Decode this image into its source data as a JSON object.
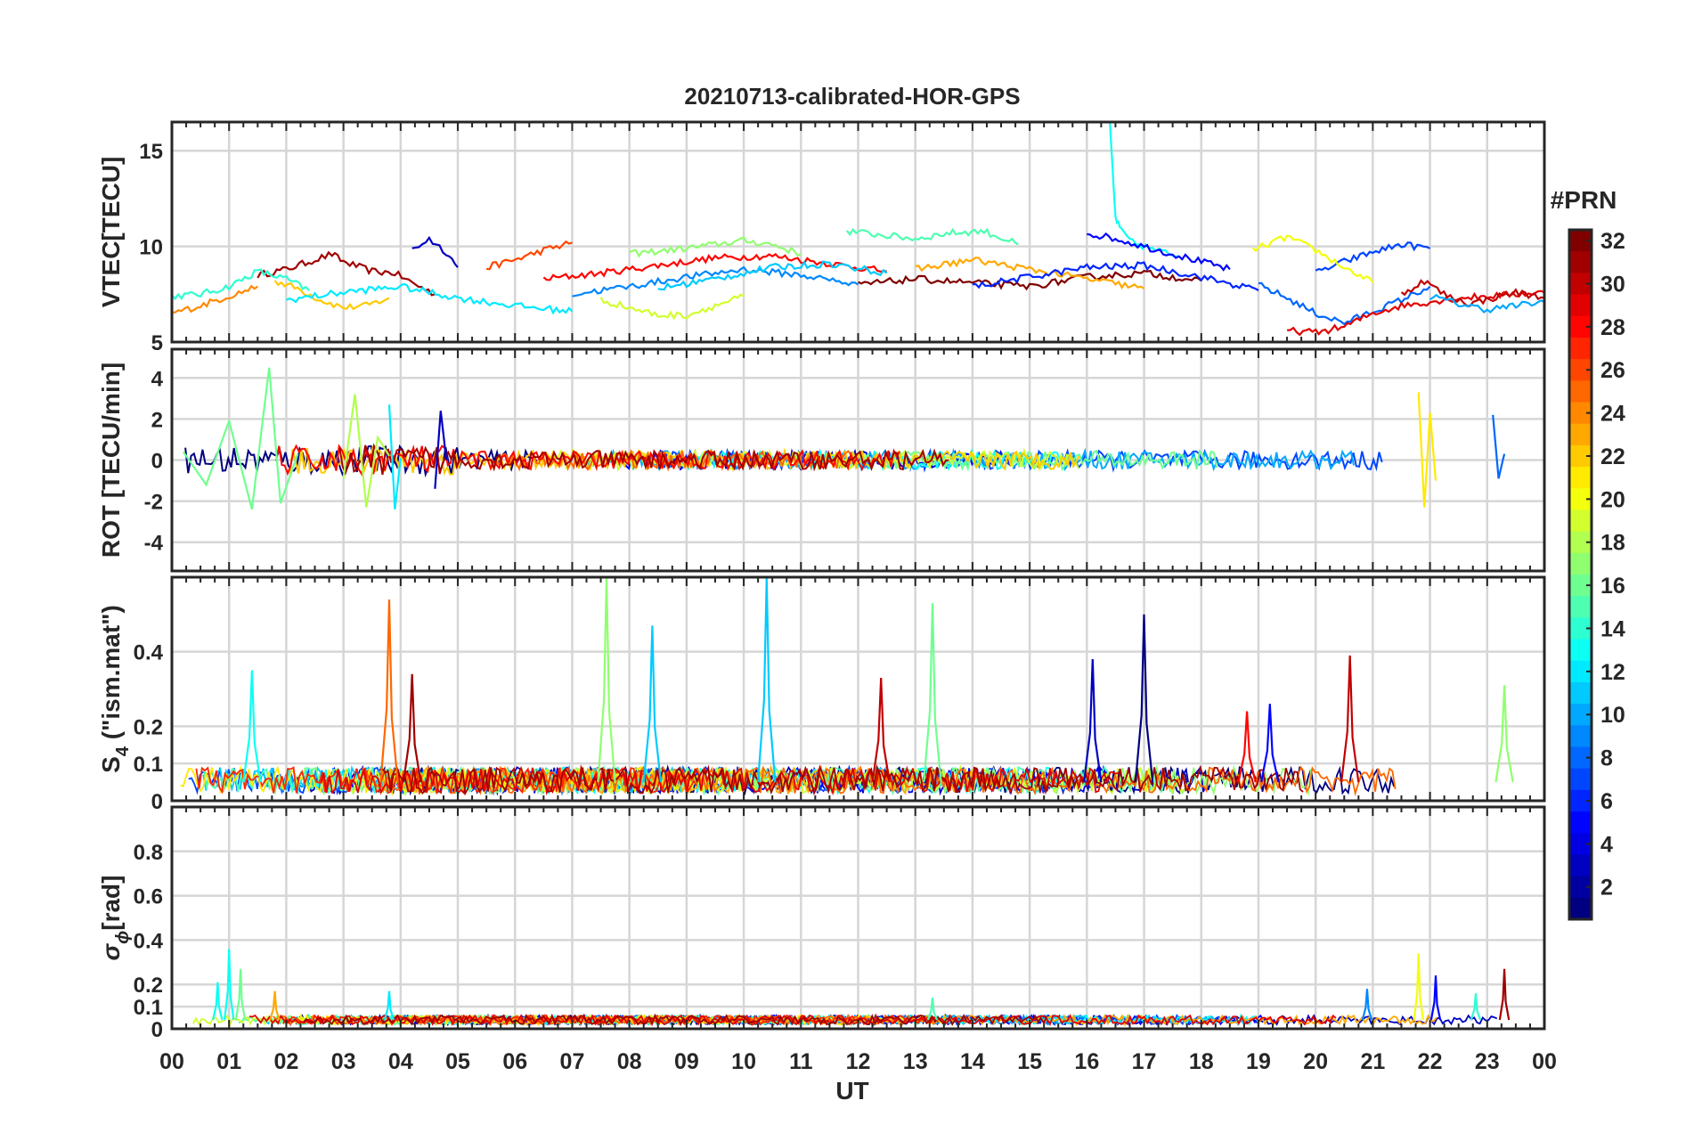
{
  "title": "20210713-calibrated-HOR-GPS",
  "xlabel": "UT",
  "x_ticks": [
    "00",
    "01",
    "02",
    "03",
    "04",
    "05",
    "06",
    "07",
    "08",
    "09",
    "10",
    "11",
    "12",
    "13",
    "14",
    "15",
    "16",
    "17",
    "18",
    "19",
    "20",
    "21",
    "22",
    "23",
    "00"
  ],
  "colorbar": {
    "label": "#PRN",
    "ticks": [
      "2",
      "4",
      "6",
      "8",
      "10",
      "12",
      "14",
      "16",
      "18",
      "20",
      "22",
      "24",
      "26",
      "28",
      "30",
      "32"
    ],
    "range": [
      1,
      32
    ],
    "colormap": "jet"
  },
  "chart_data": [
    {
      "type": "line",
      "id": "vtec",
      "ylabel": "VTEC[TECU]",
      "yticks": [
        "5",
        "10",
        "15"
      ],
      "ylim": [
        5,
        16.5
      ],
      "xlim": [
        0,
        24
      ],
      "grid": true,
      "series": [
        {
          "prn": 31,
          "x": [
            1.5,
            2,
            2.5,
            2.8,
            3,
            3.5,
            3.9,
            4.2,
            4.6
          ],
          "y": [
            8.5,
            8.8,
            9.3,
            9.6,
            9.2,
            8.7,
            8.6,
            8.1,
            7.5
          ]
        },
        {
          "prn": 22,
          "x": [
            1.8,
            2.2,
            2.6,
            3.0,
            3.4,
            3.8
          ],
          "y": [
            8.2,
            7.8,
            7.2,
            6.8,
            6.9,
            7.3
          ]
        },
        {
          "prn": 3,
          "x": [
            4.2,
            4.5,
            4.8,
            5.0
          ],
          "y": [
            9.8,
            10.4,
            9.7,
            8.9
          ]
        },
        {
          "prn": 14,
          "x": [
            0,
            0.5,
            1.0,
            1.5,
            2.0,
            2.4
          ],
          "y": [
            7.4,
            7.5,
            7.9,
            8.7,
            8.3,
            7.7
          ]
        },
        {
          "prn": 24,
          "x": [
            0.0,
            0.5,
            1.0,
            1.5
          ],
          "y": [
            6.5,
            6.9,
            7.4,
            7.9
          ]
        },
        {
          "prn": 26,
          "x": [
            5.5,
            6.0,
            6.5,
            7.0
          ],
          "y": [
            8.9,
            9.3,
            9.8,
            10.2
          ]
        },
        {
          "prn": 28,
          "x": [
            6.5,
            7.5,
            8.5,
            9.5,
            10.5,
            11.5,
            12.5
          ],
          "y": [
            8.3,
            8.6,
            9.0,
            9.4,
            9.5,
            9.1,
            8.7
          ]
        },
        {
          "prn": 17,
          "x": [
            8.0,
            9.0,
            10.0,
            10.5,
            11.0
          ],
          "y": [
            9.6,
            9.9,
            10.3,
            10.1,
            9.6
          ]
        },
        {
          "prn": 15,
          "x": [
            11.8,
            12.4,
            13.0,
            13.6,
            14.2,
            14.8
          ],
          "y": [
            10.8,
            10.6,
            10.4,
            10.7,
            10.8,
            10.1
          ]
        },
        {
          "prn": 13,
          "x": [
            16.4,
            16.5,
            16.6,
            16.8,
            17.2,
            17.6
          ],
          "y": [
            16.5,
            11.5,
            10.8,
            10.2,
            9.8,
            9.5
          ]
        },
        {
          "prn": 5,
          "x": [
            16.0,
            16.5,
            17.0,
            17.5,
            18.0,
            18.5
          ],
          "y": [
            10.7,
            10.4,
            10.0,
            9.6,
            9.2,
            8.8
          ]
        },
        {
          "prn": 8,
          "x": [
            19.0,
            19.5,
            20.0,
            20.5,
            21.0,
            21.5,
            22.0
          ],
          "y": [
            8.0,
            7.3,
            6.5,
            6.0,
            6.6,
            7.2,
            7.9
          ]
        },
        {
          "prn": 7,
          "x": [
            20.0,
            20.5,
            21.0,
            21.5,
            22.0
          ],
          "y": [
            8.6,
            9.2,
            9.7,
            10.1,
            9.9
          ]
        },
        {
          "prn": 20,
          "x": [
            18.9,
            19.5,
            20.0,
            20.5,
            21.0
          ],
          "y": [
            9.8,
            10.5,
            9.8,
            8.9,
            8.1
          ]
        },
        {
          "prn": 29,
          "x": [
            19.5,
            20.0,
            20.5,
            21.0,
            21.5,
            22.0,
            22.5,
            23.0,
            23.5,
            24.0
          ],
          "y": [
            5.6,
            5.5,
            5.8,
            6.5,
            6.9,
            7.1,
            7.3,
            7.4,
            7.5,
            7.6
          ]
        },
        {
          "prn": 30,
          "x": [
            21.5,
            21.9,
            22.3,
            22.7,
            23.1,
            23.5,
            24.0
          ],
          "y": [
            7.5,
            8.2,
            7.4,
            7.0,
            7.3,
            7.6,
            7.3
          ]
        },
        {
          "prn": 10,
          "x": [
            22.0,
            22.5,
            23.0,
            23.5,
            24.0
          ],
          "y": [
            7.4,
            7.0,
            6.7,
            6.9,
            7.1
          ]
        },
        {
          "prn": 12,
          "x": [
            2.0,
            3.0,
            4.0,
            5.0,
            6.0,
            7.0
          ],
          "y": [
            7.2,
            7.6,
            7.9,
            7.3,
            6.9,
            6.6
          ]
        },
        {
          "prn": 9,
          "x": [
            7.0,
            8.0,
            9.0,
            10.0,
            11.0,
            12.0
          ],
          "y": [
            7.5,
            7.9,
            8.4,
            8.8,
            8.5,
            8.0
          ]
        },
        {
          "prn": 19,
          "x": [
            7.5,
            8.0,
            8.5,
            9.0,
            9.5,
            10.0
          ],
          "y": [
            7.2,
            6.8,
            6.4,
            6.4,
            6.9,
            7.4
          ]
        },
        {
          "prn": 32,
          "x": [
            12.0,
            13.0,
            14.0,
            15.0,
            16.0,
            17.0,
            18.0
          ],
          "y": [
            8.0,
            8.3,
            8.1,
            7.9,
            8.4,
            8.6,
            8.2
          ]
        },
        {
          "prn": 23,
          "x": [
            13.0,
            14.0,
            15.0,
            16.0,
            17.0
          ],
          "y": [
            8.8,
            9.3,
            8.8,
            8.3,
            7.8
          ]
        },
        {
          "prn": 6,
          "x": [
            14.0,
            15.0,
            16.0,
            17.0,
            18.0,
            19.0
          ],
          "y": [
            7.9,
            8.4,
            8.9,
            9.0,
            8.4,
            7.7
          ]
        },
        {
          "prn": 11,
          "x": [
            8.5,
            9.5,
            10.5,
            11.5,
            12.5
          ],
          "y": [
            7.8,
            8.3,
            8.9,
            9.1,
            8.6
          ]
        }
      ]
    },
    {
      "type": "line",
      "id": "rot",
      "ylabel": "ROT [TECU/min]",
      "yticks": [
        "-4",
        "-2",
        "0",
        "2",
        "4"
      ],
      "ylim": [
        -5.4,
        5.4
      ],
      "xlim": [
        0,
        24
      ],
      "grid": true,
      "series": [
        {
          "prn": 16,
          "x": [
            0.2,
            0.6,
            1.0,
            1.4,
            1.7,
            1.9,
            2.2
          ],
          "y": [
            0.4,
            -1.2,
            1.9,
            -2.4,
            4.5,
            -2.1,
            0.3
          ]
        },
        {
          "prn": 18,
          "x": [
            3.0,
            3.2,
            3.4,
            3.6,
            3.8
          ],
          "y": [
            -0.9,
            3.2,
            -2.3,
            1.1,
            0.2
          ]
        },
        {
          "prn": 12,
          "x": [
            3.8,
            3.9,
            4.0
          ],
          "y": [
            2.7,
            -2.4,
            0.1
          ]
        },
        {
          "prn": 3,
          "x": [
            4.6,
            4.7,
            4.8
          ],
          "y": [
            -1.4,
            2.4,
            0.0
          ]
        },
        {
          "prn": 21,
          "x": [
            21.8,
            21.9,
            22.0,
            22.1
          ],
          "y": [
            3.3,
            -2.3,
            2.3,
            -1.0
          ]
        },
        {
          "prn": 8,
          "x": [
            23.1,
            23.2,
            23.3
          ],
          "y": [
            2.2,
            -0.9,
            0.3
          ]
        }
      ]
    },
    {
      "type": "line",
      "id": "s4",
      "ylabel": "S4 (\"ism.mat\")",
      "ylabel_main": "S",
      "ylabel_sub": "4",
      "ylabel_rest": " (\"ism.mat\")",
      "yticks": [
        "0",
        "0.1",
        "0.2",
        "0.4"
      ],
      "ylim": [
        0,
        0.6
      ],
      "xlim": [
        0,
        24
      ],
      "grid": true,
      "peaks": [
        {
          "prn": 13,
          "x": 1.4,
          "y": 0.35
        },
        {
          "prn": 25,
          "x": 3.8,
          "y": 0.54
        },
        {
          "prn": 31,
          "x": 4.2,
          "y": 0.34
        },
        {
          "prn": 17,
          "x": 7.6,
          "y": 0.6
        },
        {
          "prn": 11,
          "x": 8.4,
          "y": 0.47
        },
        {
          "prn": 11,
          "x": 10.4,
          "y": 0.6
        },
        {
          "prn": 30,
          "x": 12.4,
          "y": 0.33
        },
        {
          "prn": 16,
          "x": 13.3,
          "y": 0.53
        },
        {
          "prn": 3,
          "x": 16.1,
          "y": 0.38
        },
        {
          "prn": 1,
          "x": 17.0,
          "y": 0.5
        },
        {
          "prn": 30,
          "x": 20.6,
          "y": 0.39
        },
        {
          "prn": 28,
          "x": 18.8,
          "y": 0.24
        },
        {
          "prn": 5,
          "x": 19.2,
          "y": 0.26
        },
        {
          "prn": 17,
          "x": 23.3,
          "y": 0.31
        }
      ]
    },
    {
      "type": "line",
      "id": "sigma_phi",
      "ylabel": "σϕ[rad]",
      "ylabel_main": "σ",
      "ylabel_sub": "ϕ",
      "ylabel_rest": "[rad]",
      "yticks": [
        "0",
        "0.1",
        "0.2",
        "0.4",
        "0.6",
        "0.8"
      ],
      "ylim": [
        0,
        1.0
      ],
      "xlim": [
        0,
        24
      ],
      "grid": true,
      "peaks": [
        {
          "prn": 13,
          "x": 0.8,
          "y": 0.21
        },
        {
          "prn": 13,
          "x": 1.0,
          "y": 0.36
        },
        {
          "prn": 16,
          "x": 1.2,
          "y": 0.27
        },
        {
          "prn": 23,
          "x": 1.8,
          "y": 0.17
        },
        {
          "prn": 12,
          "x": 3.8,
          "y": 0.17
        },
        {
          "prn": 15,
          "x": 13.3,
          "y": 0.14
        },
        {
          "prn": 9,
          "x": 20.9,
          "y": 0.18
        },
        {
          "prn": 20,
          "x": 21.8,
          "y": 0.34
        },
        {
          "prn": 5,
          "x": 22.1,
          "y": 0.24
        },
        {
          "prn": 14,
          "x": 22.8,
          "y": 0.16
        },
        {
          "prn": 31,
          "x": 23.3,
          "y": 0.27
        }
      ]
    }
  ]
}
